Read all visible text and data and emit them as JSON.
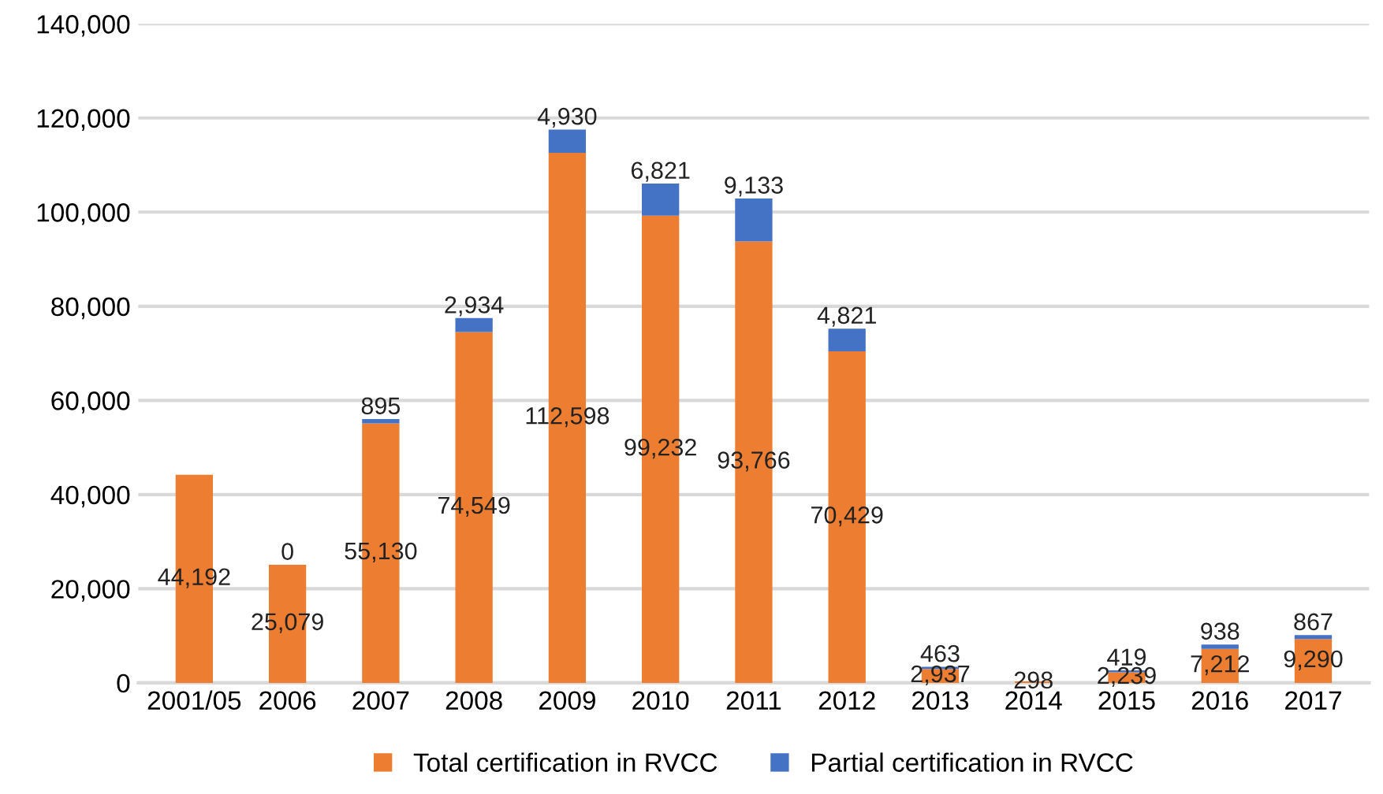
{
  "chart_data": {
    "type": "bar",
    "stacked": true,
    "categories": [
      "2001/05",
      "2006",
      "2007",
      "2008",
      "2009",
      "2010",
      "2011",
      "2012",
      "2013",
      "2014",
      "2015",
      "2016",
      "2017"
    ],
    "series": [
      {
        "name": "Total certification in RVCC",
        "color": "#ed7d31",
        "values": [
          44192,
          25079,
          55130,
          74549,
          112598,
          99232,
          93766,
          70429,
          2937,
          298,
          2239,
          7212,
          9290
        ],
        "value_labels": [
          "44,192",
          "25,079",
          "55,130",
          "74,549",
          "112,598",
          "99,232",
          "93,766",
          "70,429",
          "2,937",
          "298",
          "2,239",
          "7,212",
          "9,290"
        ]
      },
      {
        "name": "Partial certification in RVCC",
        "color": "#4472c4",
        "values": [
          null,
          0,
          895,
          2934,
          4930,
          6821,
          9133,
          4821,
          463,
          null,
          419,
          938,
          867
        ],
        "value_labels": [
          null,
          "0",
          "895",
          "2,934",
          "4,930",
          "6,821",
          "9,133",
          "4,821",
          "463",
          null,
          "419",
          "938",
          "867"
        ]
      }
    ],
    "ylim": [
      0,
      140000
    ],
    "yticks": [
      {
        "value": 0,
        "label": "0"
      },
      {
        "value": 20000,
        "label": "20,000"
      },
      {
        "value": 40000,
        "label": "40,000"
      },
      {
        "value": 60000,
        "label": "60,000"
      },
      {
        "value": 80000,
        "label": "80,000"
      },
      {
        "value": 100000,
        "label": "100,000"
      },
      {
        "value": 120000,
        "label": "120,000"
      },
      {
        "value": 140000,
        "label": "140,000"
      }
    ],
    "grid": "y",
    "legend": "bottom"
  }
}
